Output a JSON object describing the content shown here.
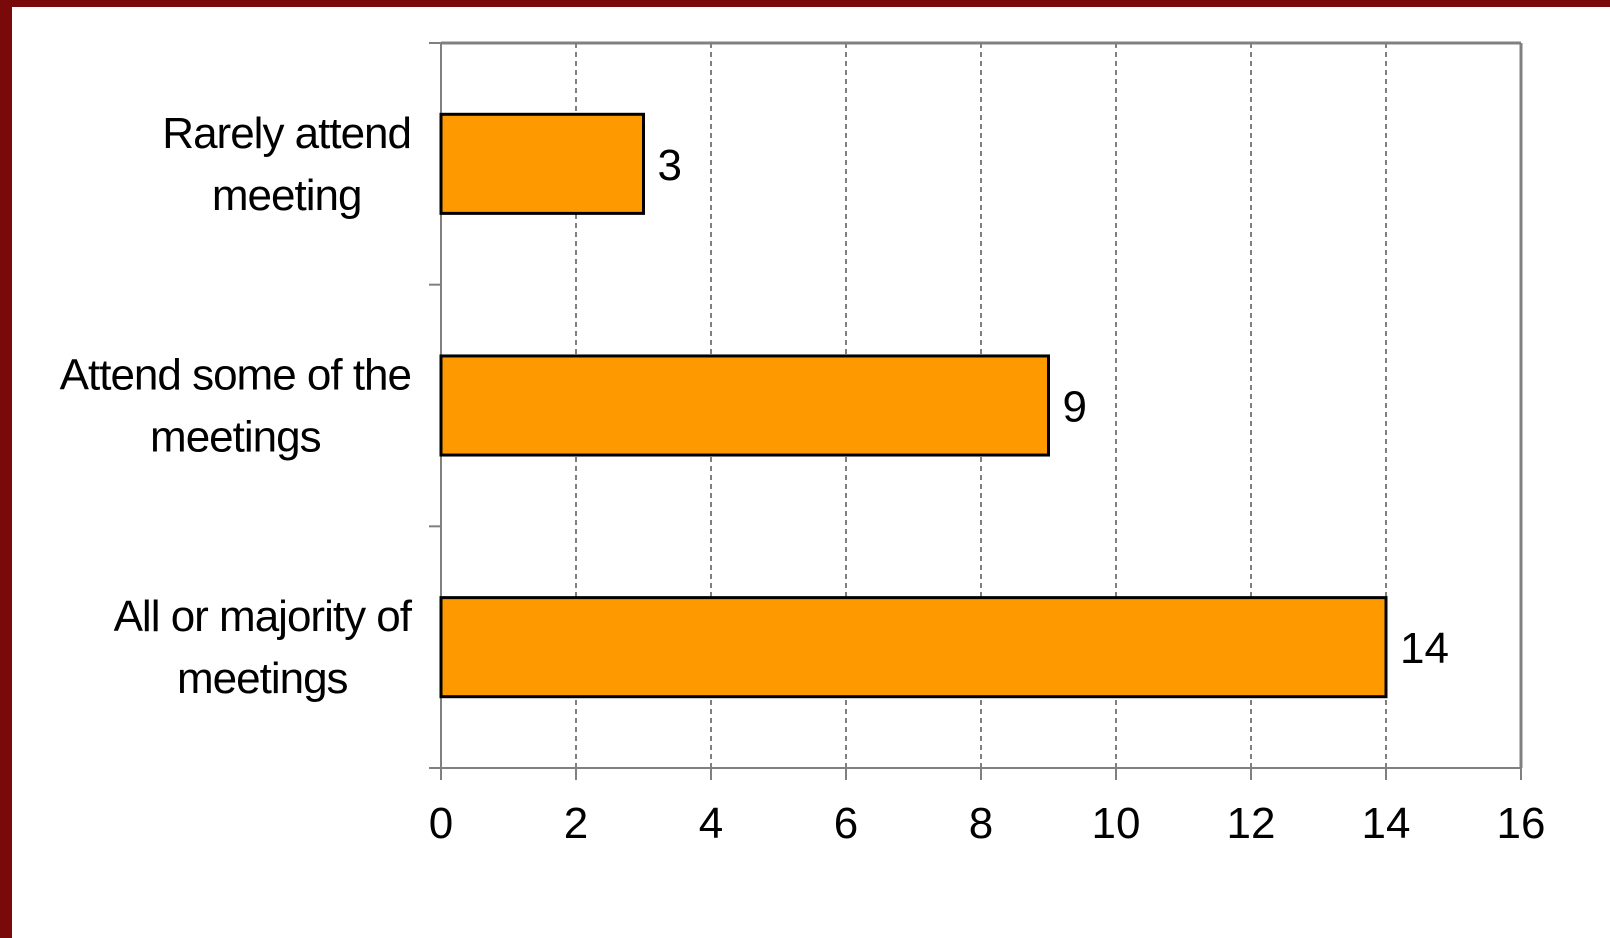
{
  "chart_data": {
    "type": "bar",
    "orientation": "horizontal",
    "categories": [
      "Rarely attend meeting",
      "Attend some of the meetings",
      "All or majority of meetings"
    ],
    "category_label_lines": [
      [
        "Rarely attend",
        "meeting"
      ],
      [
        "Attend some of the",
        "meetings"
      ],
      [
        "All or majority of",
        "meetings"
      ]
    ],
    "values": [
      3,
      9,
      14
    ],
    "data_labels": [
      "3",
      "9",
      "14"
    ],
    "xlim": [
      0,
      16
    ],
    "xticks": [
      0,
      2,
      4,
      6,
      8,
      10,
      12,
      14,
      16
    ],
    "xtick_labels": [
      "0",
      "2",
      "4",
      "6",
      "8",
      "10",
      "12",
      "14",
      "16"
    ],
    "grid": "vertical dashed",
    "legend": "none",
    "title": "",
    "xlabel": "",
    "ylabel": "",
    "colors": {
      "bar": "#ff9900",
      "bar_outline": "#000000",
      "grid": "#000000",
      "axis": "#808080",
      "frame": "#7a0a0a"
    }
  }
}
